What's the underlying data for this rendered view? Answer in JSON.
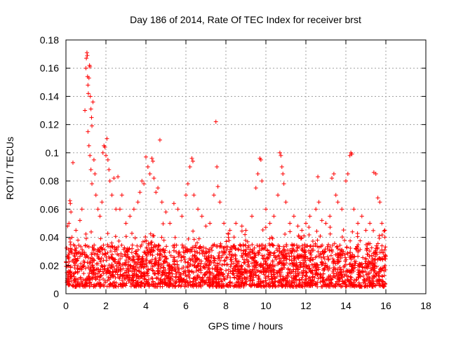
{
  "chart_data": {
    "type": "scatter",
    "title": "Day 186 of 2014, Rate Of TEC Index for receiver brst",
    "xlabel": "GPS time / hours",
    "ylabel": "ROTI / TECUs",
    "xlim": [
      0,
      18
    ],
    "ylim": [
      0,
      0.18
    ],
    "xticks": [
      0,
      2,
      4,
      6,
      8,
      10,
      12,
      14,
      16,
      18
    ],
    "xtick_labels": [
      "0",
      "2",
      "4",
      "6",
      "8",
      "10",
      "12",
      "14",
      "16",
      "18"
    ],
    "yticks": [
      0,
      0.02,
      0.04,
      0.06,
      0.08,
      0.1,
      0.12,
      0.14,
      0.16,
      0.18
    ],
    "ytick_labels": [
      "0",
      "0.02",
      "0.04",
      "0.06",
      "0.08",
      "0.1",
      "0.12",
      "0.14",
      "0.16",
      "0.18"
    ],
    "grid": true,
    "marker": "+",
    "color": "#ff0000",
    "x_data_range": [
      0.0,
      16.0
    ],
    "baseline_band": [
      0.005,
      0.035
    ],
    "series": [
      {
        "name": "ROTI",
        "points": [
          [
            0.08,
            0.048
          ],
          [
            0.15,
            0.05
          ],
          [
            0.2,
            0.066
          ],
          [
            0.22,
            0.064
          ],
          [
            0.25,
            0.058
          ],
          [
            0.3,
            0.04
          ],
          [
            0.35,
            0.093
          ],
          [
            0.5,
            0.045
          ],
          [
            0.6,
            0.038
          ],
          [
            0.7,
            0.052
          ],
          [
            0.8,
            0.06
          ],
          [
            0.95,
            0.13
          ],
          [
            1.0,
            0.16
          ],
          [
            1.02,
            0.167
          ],
          [
            1.05,
            0.171
          ],
          [
            1.07,
            0.169
          ],
          [
            1.08,
            0.154
          ],
          [
            1.1,
            0.148
          ],
          [
            1.12,
            0.142
          ],
          [
            1.15,
            0.153
          ],
          [
            1.18,
            0.162
          ],
          [
            1.2,
            0.161
          ],
          [
            1.22,
            0.14
          ],
          [
            1.25,
            0.131
          ],
          [
            1.28,
            0.125
          ],
          [
            1.3,
            0.119
          ],
          [
            1.1,
            0.115
          ],
          [
            1.15,
            0.105
          ],
          [
            1.2,
            0.098
          ],
          [
            1.25,
            0.088
          ],
          [
            1.3,
            0.078
          ],
          [
            1.35,
            0.136
          ],
          [
            1.4,
            0.095
          ],
          [
            1.45,
            0.085
          ],
          [
            1.5,
            0.07
          ],
          [
            1.6,
            0.06
          ],
          [
            1.7,
            0.055
          ],
          [
            1.8,
            0.065
          ],
          [
            1.85,
            0.1
          ],
          [
            1.9,
            0.105
          ],
          [
            1.95,
            0.104
          ],
          [
            2.0,
            0.098
          ],
          [
            2.05,
            0.11
          ],
          [
            2.1,
            0.095
          ],
          [
            2.15,
            0.088
          ],
          [
            2.2,
            0.08
          ],
          [
            2.3,
            0.07
          ],
          [
            2.4,
            0.082
          ],
          [
            2.5,
            0.06
          ],
          [
            2.6,
            0.083
          ],
          [
            2.7,
            0.06
          ],
          [
            2.8,
            0.07
          ],
          [
            3.0,
            0.05
          ],
          [
            3.2,
            0.055
          ],
          [
            3.4,
            0.06
          ],
          [
            3.6,
            0.065
          ],
          [
            3.7,
            0.072
          ],
          [
            3.8,
            0.08
          ],
          [
            3.9,
            0.078
          ],
          [
            4.0,
            0.097
          ],
          [
            4.1,
            0.09
          ],
          [
            4.2,
            0.085
          ],
          [
            4.3,
            0.096
          ],
          [
            4.35,
            0.094
          ],
          [
            4.4,
            0.082
          ],
          [
            4.5,
            0.072
          ],
          [
            4.6,
            0.075
          ],
          [
            4.7,
            0.109
          ],
          [
            4.8,
            0.065
          ],
          [
            5.0,
            0.058
          ],
          [
            5.2,
            0.05
          ],
          [
            5.4,
            0.064
          ],
          [
            5.6,
            0.06
          ],
          [
            5.8,
            0.055
          ],
          [
            6.0,
            0.07
          ],
          [
            6.1,
            0.078
          ],
          [
            6.2,
            0.09
          ],
          [
            6.3,
            0.096
          ],
          [
            6.35,
            0.094
          ],
          [
            6.4,
            0.07
          ],
          [
            6.6,
            0.06
          ],
          [
            6.8,
            0.055
          ],
          [
            7.0,
            0.048
          ],
          [
            7.2,
            0.05
          ],
          [
            7.4,
            0.07
          ],
          [
            7.5,
            0.122
          ],
          [
            7.55,
            0.09
          ],
          [
            7.6,
            0.076
          ],
          [
            7.7,
            0.065
          ],
          [
            7.9,
            0.05
          ],
          [
            8.2,
            0.045
          ],
          [
            8.5,
            0.05
          ],
          [
            8.8,
            0.048
          ],
          [
            9.0,
            0.045
          ],
          [
            9.3,
            0.055
          ],
          [
            9.5,
            0.075
          ],
          [
            9.6,
            0.085
          ],
          [
            9.7,
            0.096
          ],
          [
            9.75,
            0.095
          ],
          [
            9.8,
            0.08
          ],
          [
            10.0,
            0.06
          ],
          [
            10.2,
            0.05
          ],
          [
            10.4,
            0.055
          ],
          [
            10.6,
            0.07
          ],
          [
            10.7,
            0.1
          ],
          [
            10.75,
            0.098
          ],
          [
            10.8,
            0.09
          ],
          [
            10.85,
            0.085
          ],
          [
            10.9,
            0.078
          ],
          [
            11.0,
            0.065
          ],
          [
            11.2,
            0.05
          ],
          [
            11.4,
            0.055
          ],
          [
            11.6,
            0.048
          ],
          [
            11.8,
            0.045
          ],
          [
            12.0,
            0.05
          ],
          [
            12.2,
            0.055
          ],
          [
            12.5,
            0.06
          ],
          [
            12.6,
            0.083
          ],
          [
            12.65,
            0.065
          ],
          [
            12.8,
            0.052
          ],
          [
            13.0,
            0.05
          ],
          [
            13.2,
            0.055
          ],
          [
            13.3,
            0.082
          ],
          [
            13.4,
            0.085
          ],
          [
            13.5,
            0.07
          ],
          [
            13.6,
            0.065
          ],
          [
            13.8,
            0.06
          ],
          [
            14.0,
            0.08
          ],
          [
            14.1,
            0.085
          ],
          [
            14.2,
            0.098
          ],
          [
            14.25,
            0.1
          ],
          [
            14.3,
            0.099
          ],
          [
            14.4,
            0.06
          ],
          [
            14.6,
            0.05
          ],
          [
            14.8,
            0.055
          ],
          [
            15.0,
            0.045
          ],
          [
            15.2,
            0.05
          ],
          [
            15.4,
            0.086
          ],
          [
            15.5,
            0.085
          ],
          [
            15.6,
            0.068
          ],
          [
            15.7,
            0.065
          ],
          [
            15.8,
            0.05
          ],
          [
            15.95,
            0.045
          ]
        ]
      }
    ]
  }
}
